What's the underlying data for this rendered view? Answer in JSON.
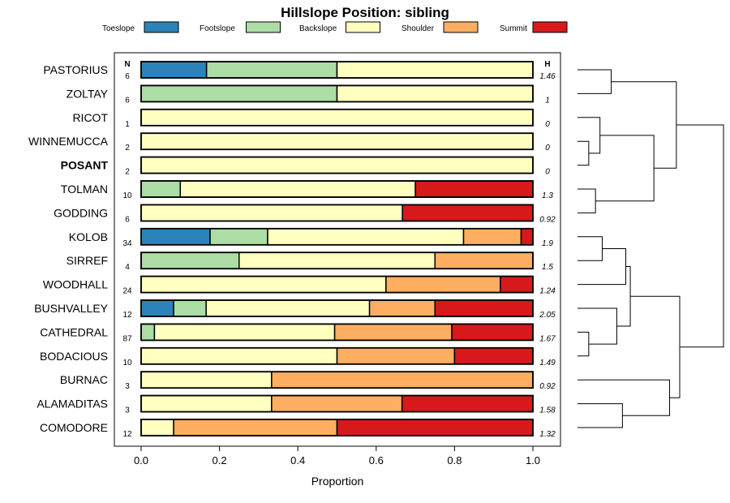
{
  "chart_data": {
    "type": "bar",
    "stacked": true,
    "orientation": "horizontal",
    "title": "Hillslope Position: sibling",
    "xlabel": "Proportion",
    "xlim": [
      0,
      1
    ],
    "xticks": [
      "0.0",
      "0.2",
      "0.4",
      "0.6",
      "0.8",
      "1.0"
    ],
    "n_header": "N",
    "h_header": "H",
    "series": [
      {
        "name": "Toeslope",
        "color": "#2b83ba"
      },
      {
        "name": "Footslope",
        "color": "#abdda4"
      },
      {
        "name": "Backslope",
        "color": "#ffffbf"
      },
      {
        "name": "Shoulder",
        "color": "#fdae61"
      },
      {
        "name": "Summit",
        "color": "#d7191c"
      }
    ],
    "rows": [
      {
        "label": "PASTORIUS",
        "n": "6",
        "h": "1.46",
        "values": [
          0.167,
          0.333,
          0.5,
          0,
          0
        ]
      },
      {
        "label": "ZOLTAY",
        "n": "6",
        "h": "1",
        "values": [
          0,
          0.5,
          0.5,
          0,
          0
        ]
      },
      {
        "label": "RICOT",
        "n": "1",
        "h": "0",
        "values": [
          0,
          0,
          1,
          0,
          0
        ]
      },
      {
        "label": "WINNEMUCCA",
        "n": "2",
        "h": "0",
        "values": [
          0,
          0,
          1,
          0,
          0
        ]
      },
      {
        "label": "POSANT",
        "n": "2",
        "h": "0",
        "values": [
          0,
          0,
          1,
          0,
          0
        ],
        "bold": true
      },
      {
        "label": "TOLMAN",
        "n": "10",
        "h": "1.3",
        "values": [
          0,
          0.1,
          0.6,
          0,
          0.3
        ]
      },
      {
        "label": "GODDING",
        "n": "6",
        "h": "0.92",
        "values": [
          0,
          0,
          0.667,
          0,
          0.333
        ]
      },
      {
        "label": "KOLOB",
        "n": "34",
        "h": "1.9",
        "values": [
          0.176,
          0.147,
          0.5,
          0.147,
          0.03
        ]
      },
      {
        "label": "SIRREF",
        "n": "4",
        "h": "1.5",
        "values": [
          0,
          0.25,
          0.5,
          0.25,
          0
        ]
      },
      {
        "label": "WOODHALL",
        "n": "24",
        "h": "1.24",
        "values": [
          0,
          0,
          0.625,
          0.292,
          0.083
        ]
      },
      {
        "label": "BUSHVALLEY",
        "n": "12",
        "h": "2.05",
        "values": [
          0.083,
          0.083,
          0.417,
          0.167,
          0.25
        ]
      },
      {
        "label": "CATHEDRAL",
        "n": "87",
        "h": "1.67",
        "values": [
          0,
          0.034,
          0.46,
          0.299,
          0.207
        ]
      },
      {
        "label": "BODACIOUS",
        "n": "10",
        "h": "1.49",
        "values": [
          0,
          0,
          0.5,
          0.3,
          0.2
        ]
      },
      {
        "label": "BURNAC",
        "n": "3",
        "h": "0.92",
        "values": [
          0,
          0,
          0.333,
          0.667,
          0
        ]
      },
      {
        "label": "ALAMADITAS",
        "n": "3",
        "h": "1.58",
        "values": [
          0,
          0,
          0.333,
          0.333,
          0.334
        ]
      },
      {
        "label": "COMODORE",
        "n": "12",
        "h": "1.32",
        "values": [
          0,
          0,
          0.083,
          0.417,
          0.5
        ]
      }
    ],
    "dendrogram": {
      "leaves": [
        "PASTORIUS",
        "ZOLTAY",
        "RICOT",
        "WINNEMUCCA",
        "POSANT",
        "TOLMAN",
        "GODDING",
        "KOLOB",
        "SIRREF",
        "WOODHALL",
        "BUSHVALLEY",
        "CATHEDRAL",
        "BODACIOUS",
        "BURNAC",
        "ALAMADITAS",
        "COMODORE"
      ],
      "merges": [
        {
          "a": "L3",
          "b": "L4",
          "h": 0.1
        },
        {
          "a": "L11",
          "b": "L12",
          "h": 0.1
        },
        {
          "a": "L7",
          "b": "L8",
          "h": 0.22
        },
        {
          "a": "L5",
          "b": "L6",
          "h": 0.16
        },
        {
          "a": "L2",
          "b": "M0",
          "h": 0.2
        },
        {
          "a": "L10",
          "b": "M1",
          "h": 0.35
        },
        {
          "a": "L0",
          "b": "L1",
          "h": 0.3
        },
        {
          "a": "L14",
          "b": "L15",
          "h": 0.4
        },
        {
          "a": "M2",
          "b": "L9",
          "h": 0.43
        },
        {
          "a": "M8",
          "b": "M5",
          "h": 0.47
        },
        {
          "a": "M4",
          "b": "M3",
          "h": 0.68
        },
        {
          "a": "L13",
          "b": "M7",
          "h": 0.82
        },
        {
          "a": "M6",
          "b": "M10",
          "h": 0.88
        },
        {
          "a": "M9",
          "b": "M11",
          "h": 0.91
        },
        {
          "a": "M12",
          "b": "M13",
          "h": 1.3
        }
      ],
      "max_height": 1.3
    }
  }
}
